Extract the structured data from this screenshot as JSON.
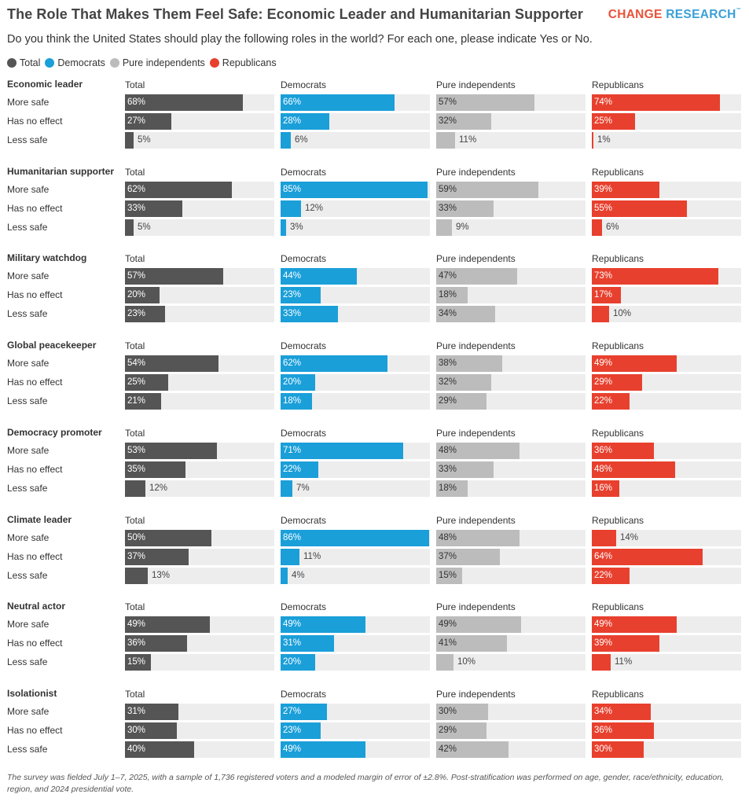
{
  "header": {
    "title": "The Role That Makes Them Feel Safe: Economic Leader and Humanitarian Supporter",
    "logo_part1": "CHANGE",
    "logo_part2": "RESEARCH",
    "logo_tm": "™",
    "subtitle": "Do you think the United States should play the following roles in the world? For each one, please indicate Yes or No."
  },
  "legend": [
    {
      "label": "Total",
      "color": "#555555"
    },
    {
      "label": "Democrats",
      "color": "#1a9fd9"
    },
    {
      "label": "Pure independents",
      "color": "#bcbcbc"
    },
    {
      "label": "Republicans",
      "color": "#e8402e"
    }
  ],
  "footnote": "The survey was fielded July 1–7, 2025, with a sample of 1,736 registered voters and a modeled margin of error of ±2.8%. Post-stratification was performed on age, gender, race/ethnicity, education, region, and 2024 presidential vote.",
  "chart_data": {
    "type": "bar",
    "orientation": "horizontal",
    "unit": "%",
    "xlim": [
      0,
      100
    ],
    "groups": [
      "Total",
      "Democrats",
      "Pure independents",
      "Republicans"
    ],
    "group_colors": [
      "#555555",
      "#1a9fd9",
      "#bcbcbc",
      "#e8402e"
    ],
    "rows": [
      "More safe",
      "Has no effect",
      "Less safe"
    ],
    "categories": [
      {
        "name": "Economic leader",
        "values": {
          "Total": [
            68,
            27,
            5
          ],
          "Democrats": [
            66,
            28,
            6
          ],
          "Pure independents": [
            57,
            32,
            11
          ],
          "Republicans": [
            74,
            25,
            1
          ]
        }
      },
      {
        "name": "Humanitarian supporter",
        "values": {
          "Total": [
            62,
            33,
            5
          ],
          "Democrats": [
            85,
            12,
            3
          ],
          "Pure independents": [
            59,
            33,
            9
          ],
          "Republicans": [
            39,
            55,
            6
          ]
        }
      },
      {
        "name": "Military watchdog",
        "values": {
          "Total": [
            57,
            20,
            23
          ],
          "Democrats": [
            44,
            23,
            33
          ],
          "Pure independents": [
            47,
            18,
            34
          ],
          "Republicans": [
            73,
            17,
            10
          ]
        }
      },
      {
        "name": "Global peacekeeper",
        "values": {
          "Total": [
            54,
            25,
            21
          ],
          "Democrats": [
            62,
            20,
            18
          ],
          "Pure independents": [
            38,
            32,
            29
          ],
          "Republicans": [
            49,
            29,
            22
          ]
        }
      },
      {
        "name": "Democracy promoter",
        "values": {
          "Total": [
            53,
            35,
            12
          ],
          "Democrats": [
            71,
            22,
            7
          ],
          "Pure independents": [
            48,
            33,
            18
          ],
          "Republicans": [
            36,
            48,
            16
          ]
        }
      },
      {
        "name": "Climate leader",
        "values": {
          "Total": [
            50,
            37,
            13
          ],
          "Democrats": [
            86,
            11,
            4
          ],
          "Pure independents": [
            48,
            37,
            15
          ],
          "Republicans": [
            14,
            64,
            22
          ]
        }
      },
      {
        "name": "Neutral actor",
        "values": {
          "Total": [
            49,
            36,
            15
          ],
          "Democrats": [
            49,
            31,
            20
          ],
          "Pure independents": [
            49,
            41,
            10
          ],
          "Republicans": [
            49,
            39,
            11
          ]
        }
      },
      {
        "name": "Isolationist",
        "values": {
          "Total": [
            31,
            30,
            40
          ],
          "Democrats": [
            27,
            23,
            49
          ],
          "Pure independents": [
            30,
            29,
            42
          ],
          "Republicans": [
            34,
            36,
            30
          ]
        }
      }
    ]
  }
}
